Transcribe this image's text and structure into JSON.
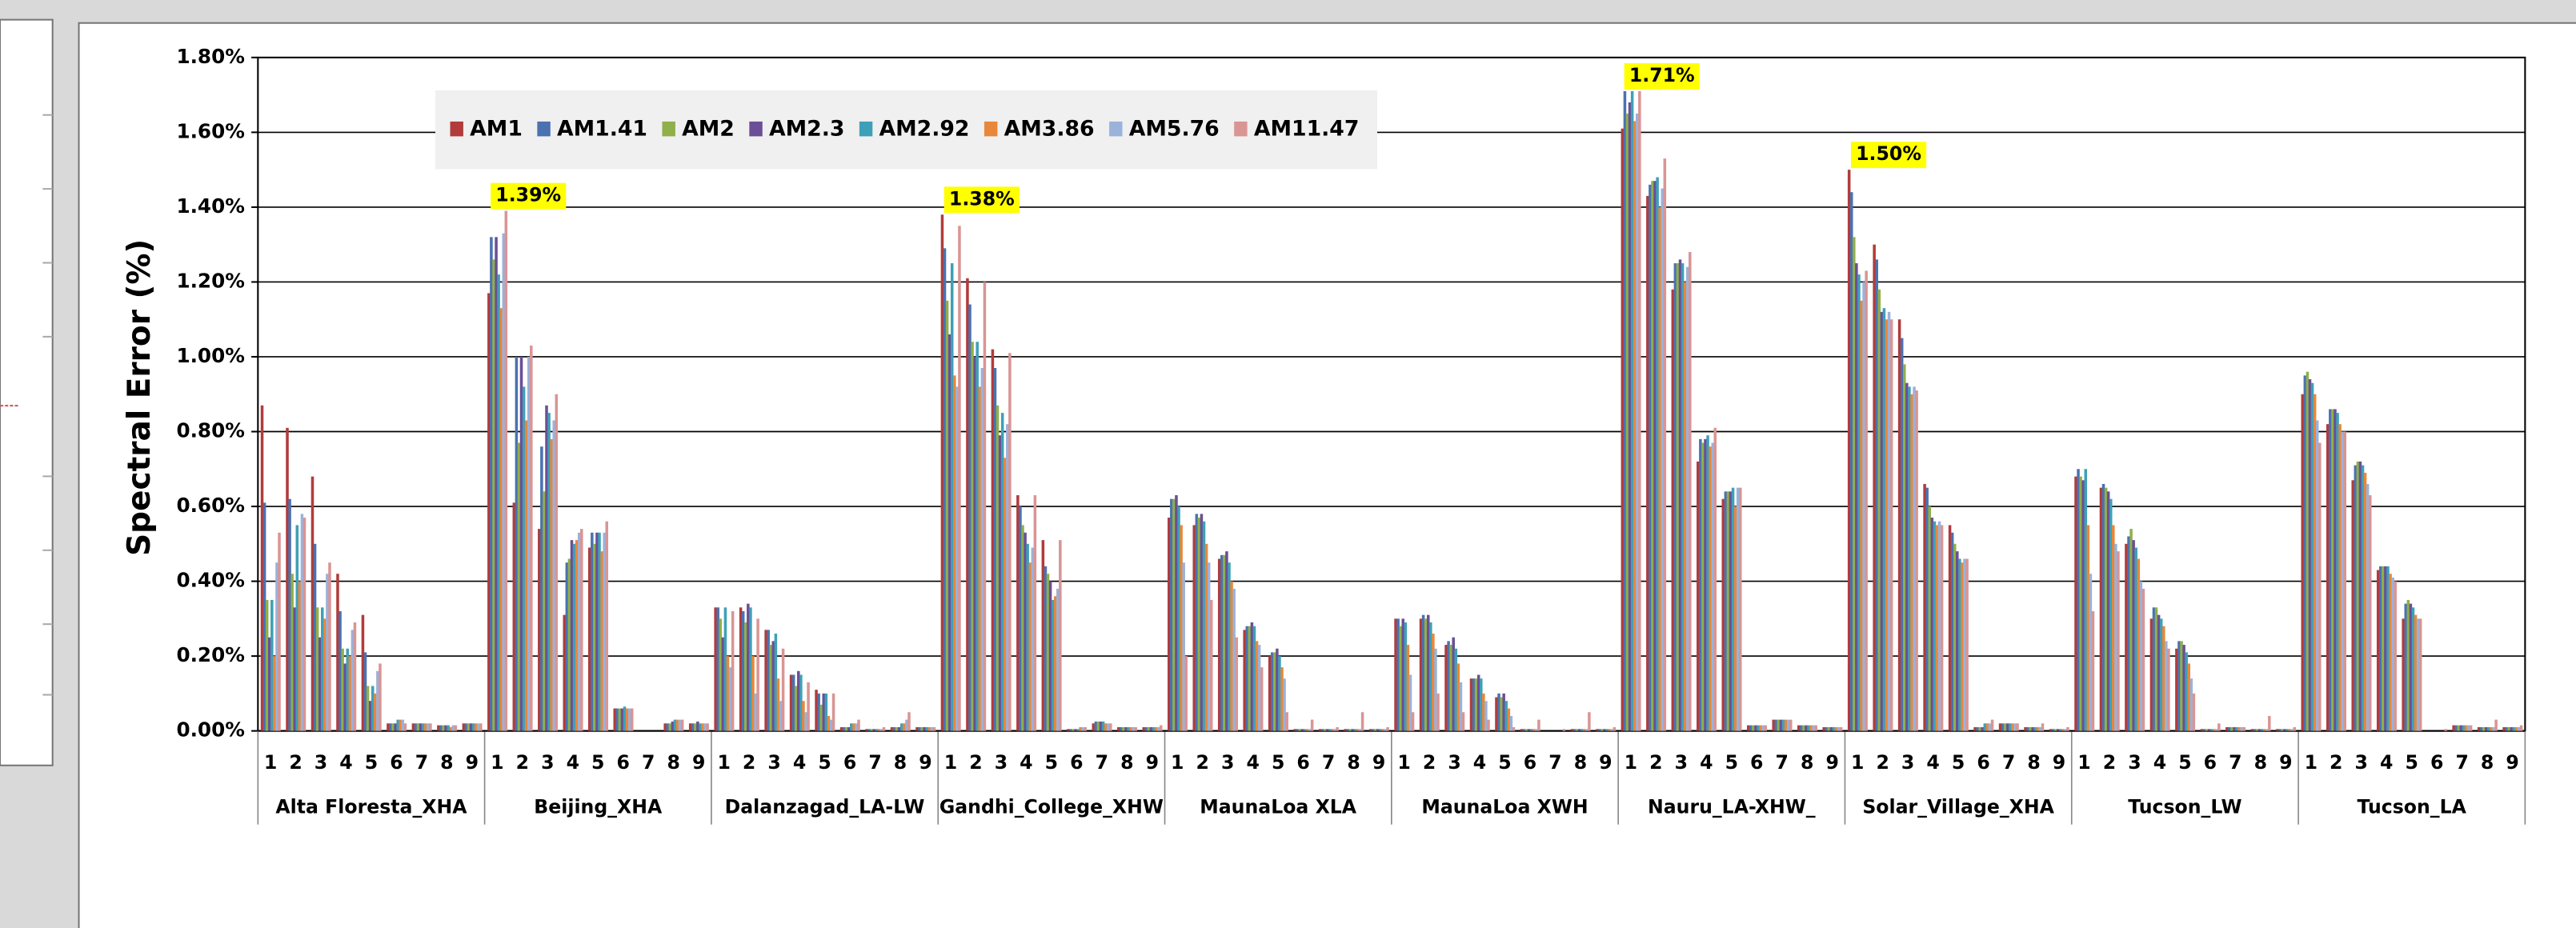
{
  "chart_data": {
    "type": "bar",
    "ylabel": "Spectral Error (%)",
    "groups": [
      "Alta Floresta_XHA",
      "Beijing_XHA",
      "Dalanzagad_LA-LW",
      "Gandhi_College_XHW",
      "MaunaLoa XLA",
      "MaunaLoa XWH",
      "Nauru_LA-XHW_",
      "Solar_Village_XHA",
      "Tucson_LW",
      "Tucson_LA"
    ],
    "subcategories": [
      "1",
      "2",
      "3",
      "4",
      "5",
      "6",
      "7",
      "8",
      "9"
    ],
    "ylim": [
      0,
      1.8
    ],
    "yticks": [
      {
        "value": 0,
        "label": "0.00%"
      },
      {
        "value": 0.2,
        "label": "0.20%"
      },
      {
        "value": 0.4,
        "label": "0.40%"
      },
      {
        "value": 0.6,
        "label": "0.60%"
      },
      {
        "value": 0.8,
        "label": "0.80%"
      },
      {
        "value": 1.0,
        "label": "1.00%"
      },
      {
        "value": 1.2,
        "label": "1.20%"
      },
      {
        "value": 1.4,
        "label": "1.40%"
      },
      {
        "value": 1.6,
        "label": "1.60%"
      },
      {
        "value": 1.8,
        "label": "1.80%"
      }
    ],
    "grid": true,
    "legend_position": "top",
    "series": [
      {
        "name": "AM1",
        "color": "#b23b3b",
        "values": [
          0.87,
          0.81,
          0.68,
          0.42,
          0.31,
          0.02,
          0.02,
          0.015,
          0.02,
          1.17,
          0.61,
          0.54,
          0.31,
          0.49,
          0.06,
          0,
          0.02,
          0.02,
          0.33,
          0.33,
          0.27,
          0.15,
          0.11,
          0.01,
          0.005,
          0.01,
          0.01,
          1.38,
          1.21,
          1.02,
          0.63,
          0.51,
          0.005,
          0.02,
          0.01,
          0.01,
          0.57,
          0.55,
          0.46,
          0.27,
          0.2,
          0.005,
          0.005,
          0.005,
          0.005,
          0.3,
          0.3,
          0.23,
          0.14,
          0.09,
          0.005,
          0,
          0.005,
          0.005,
          1.61,
          1.43,
          1.18,
          0.72,
          0.62,
          0.015,
          0.03,
          0.015,
          0.01,
          1.5,
          1.3,
          1.1,
          0.66,
          0.55,
          0.01,
          0.02,
          0.01,
          0.005,
          0.68,
          0.65,
          0.5,
          0.3,
          0.22,
          0.005,
          0.01,
          0.005,
          0.005,
          0.9,
          0.82,
          0.67,
          0.43,
          0.3,
          0,
          0.015,
          0.01,
          0.01
        ],
        "value_labels": [
          null,
          null,
          null,
          null,
          null,
          null,
          null,
          null,
          null,
          null,
          null,
          null,
          null,
          null,
          null,
          null,
          null,
          null,
          null,
          null,
          null,
          null,
          null,
          null,
          null,
          null,
          null,
          "1.38%",
          null,
          null,
          null,
          null,
          null,
          null,
          null,
          null,
          null,
          null,
          null,
          null,
          null,
          null,
          null,
          null,
          null,
          null,
          null,
          null,
          null,
          null,
          null,
          null,
          null,
          null,
          null,
          null,
          null,
          null,
          null,
          null,
          null,
          null,
          null,
          "1.50%",
          null,
          null,
          null,
          null,
          null,
          null,
          null,
          null,
          null,
          null,
          null,
          null,
          null,
          null,
          null,
          null,
          null,
          null,
          null,
          null,
          null,
          null,
          null,
          null,
          null,
          null
        ]
      },
      {
        "name": "AM1.41",
        "color": "#4a72b0",
        "values": [
          0.61,
          0.62,
          0.5,
          0.32,
          0.21,
          0.02,
          0.02,
          0.015,
          0.02,
          1.32,
          1.0,
          0.76,
          0.45,
          0.53,
          0.06,
          0,
          0.02,
          0.02,
          0.33,
          0.32,
          0.27,
          0.15,
          0.1,
          0.01,
          0.005,
          0.01,
          0.01,
          1.29,
          1.14,
          0.97,
          0.6,
          0.44,
          0.005,
          0.025,
          0.01,
          0.01,
          0.62,
          0.58,
          0.47,
          0.28,
          0.21,
          0.005,
          0.005,
          0.005,
          0.005,
          0.3,
          0.31,
          0.24,
          0.14,
          0.1,
          0.005,
          0,
          0.005,
          0.005,
          1.71,
          1.46,
          1.25,
          0.78,
          0.64,
          0.015,
          0.03,
          0.015,
          0.01,
          1.44,
          1.26,
          1.05,
          0.65,
          0.53,
          0.01,
          0.02,
          0.01,
          0.005,
          0.7,
          0.66,
          0.52,
          0.33,
          0.24,
          0.005,
          0.01,
          0.005,
          0.005,
          0.95,
          0.86,
          0.71,
          0.44,
          0.34,
          0,
          0.015,
          0.01,
          0.01
        ]
      },
      {
        "name": "AM2",
        "color": "#8fb04a",
        "values": [
          0.35,
          0.42,
          0.33,
          0.22,
          0.12,
          0.02,
          0.02,
          0.015,
          0.02,
          1.26,
          0.77,
          0.64,
          0.46,
          0.5,
          0.06,
          0,
          0.02,
          0.02,
          0.3,
          0.29,
          0.23,
          0.12,
          0.07,
          0.01,
          0.005,
          0.01,
          0.01,
          1.15,
          1.04,
          0.87,
          0.55,
          0.42,
          0.005,
          0.025,
          0.01,
          0.01,
          0.62,
          0.57,
          0.47,
          0.28,
          0.21,
          0.005,
          0.005,
          0.005,
          0.005,
          0.28,
          0.3,
          0.23,
          0.14,
          0.09,
          0.005,
          0,
          0.005,
          0.005,
          1.65,
          1.47,
          1.25,
          0.77,
          0.64,
          0.015,
          0.03,
          0.015,
          0.01,
          1.32,
          1.18,
          0.98,
          0.6,
          0.5,
          0.01,
          0.02,
          0.01,
          0.005,
          0.68,
          0.65,
          0.54,
          0.33,
          0.24,
          0.005,
          0.01,
          0.005,
          0.005,
          0.96,
          0.86,
          0.72,
          0.44,
          0.35,
          0,
          0.015,
          0.01,
          0.01
        ]
      },
      {
        "name": "AM2.3",
        "color": "#6b4f96",
        "values": [
          0.25,
          0.33,
          0.25,
          0.18,
          0.08,
          0.02,
          0.02,
          0.015,
          0.02,
          1.32,
          1.0,
          0.87,
          0.51,
          0.53,
          0.06,
          0,
          0.025,
          0.025,
          0.25,
          0.34,
          0.24,
          0.16,
          0.1,
          0.01,
          0.005,
          0.01,
          0.01,
          1.06,
          1.0,
          0.79,
          0.53,
          0.4,
          0.005,
          0.025,
          0.01,
          0.01,
          0.63,
          0.58,
          0.48,
          0.29,
          0.22,
          0.005,
          0.005,
          0.005,
          0.005,
          0.3,
          0.31,
          0.25,
          0.15,
          0.1,
          0.005,
          0,
          0.005,
          0.005,
          1.68,
          1.47,
          1.26,
          0.78,
          0.64,
          0.015,
          0.03,
          0.015,
          0.01,
          1.25,
          1.12,
          0.93,
          0.57,
          0.48,
          0.01,
          0.02,
          0.01,
          0.005,
          0.67,
          0.64,
          0.51,
          0.31,
          0.23,
          0.005,
          0.01,
          0.005,
          0.005,
          0.94,
          0.86,
          0.72,
          0.44,
          0.34,
          0,
          0.015,
          0.01,
          0.01
        ]
      },
      {
        "name": "AM2.92",
        "color": "#3ea0b8",
        "values": [
          0.35,
          0.55,
          0.33,
          0.22,
          0.12,
          0.03,
          0.02,
          0.015,
          0.02,
          1.22,
          0.92,
          0.85,
          0.5,
          0.53,
          0.065,
          0,
          0.03,
          0.02,
          0.33,
          0.33,
          0.26,
          0.15,
          0.1,
          0.02,
          0.005,
          0.02,
          0.01,
          1.25,
          1.04,
          0.85,
          0.5,
          0.35,
          0.005,
          0.025,
          0.01,
          0.01,
          0.6,
          0.56,
          0.45,
          0.28,
          0.2,
          0.005,
          0.005,
          0.005,
          0.005,
          0.29,
          0.29,
          0.22,
          0.14,
          0.08,
          0.005,
          0,
          0.005,
          0.005,
          1.71,
          1.48,
          1.25,
          0.79,
          0.65,
          0.015,
          0.03,
          0.015,
          0.01,
          1.22,
          1.13,
          0.92,
          0.56,
          0.46,
          0.02,
          0.02,
          0.01,
          0.005,
          0.7,
          0.62,
          0.49,
          0.3,
          0.21,
          0.005,
          0.01,
          0.005,
          0.005,
          0.93,
          0.85,
          0.71,
          0.44,
          0.33,
          0,
          0.015,
          0.01,
          0.01
        ]
      },
      {
        "name": "AM3.86",
        "color": "#e8873a",
        "values": [
          0.2,
          0.4,
          0.3,
          0.2,
          0.1,
          0.03,
          0.02,
          0.01,
          0.02,
          1.13,
          0.83,
          0.78,
          0.51,
          0.48,
          0.06,
          0,
          0.03,
          0.02,
          0.2,
          0.2,
          0.14,
          0.08,
          0.04,
          0.02,
          0.005,
          0.02,
          0.01,
          0.95,
          0.92,
          0.73,
          0.45,
          0.36,
          0.01,
          0.02,
          0.01,
          0.01,
          0.55,
          0.5,
          0.4,
          0.24,
          0.17,
          0.005,
          0.005,
          0.005,
          0.005,
          0.23,
          0.26,
          0.18,
          0.1,
          0.06,
          0.005,
          0,
          0.005,
          0.005,
          1.63,
          1.4,
          1.2,
          0.76,
          0.6,
          0.015,
          0.03,
          0.015,
          0.01,
          1.15,
          1.1,
          0.9,
          0.55,
          0.45,
          0.02,
          0.02,
          0.01,
          0.005,
          0.55,
          0.55,
          0.46,
          0.28,
          0.18,
          0.005,
          0.01,
          0.005,
          0.005,
          0.9,
          0.82,
          0.69,
          0.42,
          0.31,
          0,
          0.015,
          0.01,
          0.01
        ]
      },
      {
        "name": "AM5.76",
        "color": "#9bb2da",
        "values": [
          0.45,
          0.58,
          0.42,
          0.27,
          0.16,
          0.03,
          0.02,
          0.015,
          0.02,
          1.33,
          1.0,
          0.83,
          0.53,
          0.53,
          0.06,
          0,
          0.03,
          0.02,
          0.17,
          0.1,
          0.08,
          0.05,
          0.03,
          0.02,
          0.005,
          0.03,
          0.01,
          0.92,
          0.97,
          0.82,
          0.49,
          0.38,
          0.01,
          0.02,
          0.01,
          0.01,
          0.45,
          0.45,
          0.38,
          0.23,
          0.14,
          0.005,
          0.005,
          0.005,
          0.005,
          0.15,
          0.22,
          0.13,
          0.08,
          0.04,
          0.005,
          0,
          0.005,
          0.005,
          1.65,
          1.45,
          1.24,
          0.77,
          0.65,
          0.015,
          0.03,
          0.015,
          0.01,
          1.2,
          1.12,
          0.92,
          0.56,
          0.46,
          0.02,
          0.02,
          0.01,
          0.005,
          0.42,
          0.5,
          0.4,
          0.24,
          0.14,
          0.005,
          0.01,
          0.005,
          0.005,
          0.83,
          0.8,
          0.66,
          0.41,
          0.3,
          0,
          0.015,
          0.01,
          0.01
        ]
      },
      {
        "name": "AM11.47",
        "color": "#d99594",
        "values": [
          0.53,
          0.57,
          0.45,
          0.29,
          0.18,
          0.02,
          0.02,
          0.015,
          0.02,
          1.39,
          1.03,
          0.9,
          0.54,
          0.56,
          0.06,
          0,
          0.03,
          0.02,
          0.32,
          0.3,
          0.22,
          0.13,
          0.1,
          0.03,
          0.01,
          0.05,
          0.01,
          1.35,
          1.2,
          1.01,
          0.63,
          0.51,
          0.01,
          0.02,
          0.01,
          0.015,
          0.2,
          0.35,
          0.25,
          0.17,
          0.05,
          0.03,
          0.01,
          0.05,
          0.01,
          0.05,
          0.1,
          0.05,
          0.03,
          0.01,
          0.03,
          0.005,
          0.05,
          0.01,
          1.71,
          1.53,
          1.28,
          0.81,
          0.65,
          0.015,
          0.03,
          0.015,
          0.01,
          1.23,
          1.1,
          0.91,
          0.55,
          0.46,
          0.03,
          0.02,
          0.02,
          0.01,
          0.32,
          0.48,
          0.38,
          0.22,
          0.1,
          0.02,
          0.01,
          0.04,
          0.01,
          0.77,
          0.8,
          0.63,
          0.4,
          0.3,
          0.005,
          0.015,
          0.03,
          0.015
        ],
        "value_labels": [
          null,
          null,
          null,
          null,
          null,
          null,
          null,
          null,
          null,
          "1.39%",
          null,
          null,
          null,
          null,
          null,
          null,
          null,
          null,
          null,
          null,
          null,
          null,
          null,
          null,
          null,
          null,
          null,
          null,
          null,
          null,
          null,
          null,
          null,
          null,
          null,
          null,
          null,
          null,
          null,
          null,
          null,
          null,
          null,
          null,
          null,
          null,
          null,
          null,
          null,
          null,
          null,
          null,
          null,
          null,
          "1.71%",
          null,
          null,
          null,
          null,
          null,
          null,
          null,
          null,
          null,
          null,
          null,
          null,
          null,
          null,
          null,
          null,
          null,
          null,
          null,
          null,
          null,
          null,
          null,
          null,
          null,
          null,
          null,
          null,
          null,
          null,
          null,
          null,
          null,
          null,
          null
        ]
      }
    ]
  }
}
